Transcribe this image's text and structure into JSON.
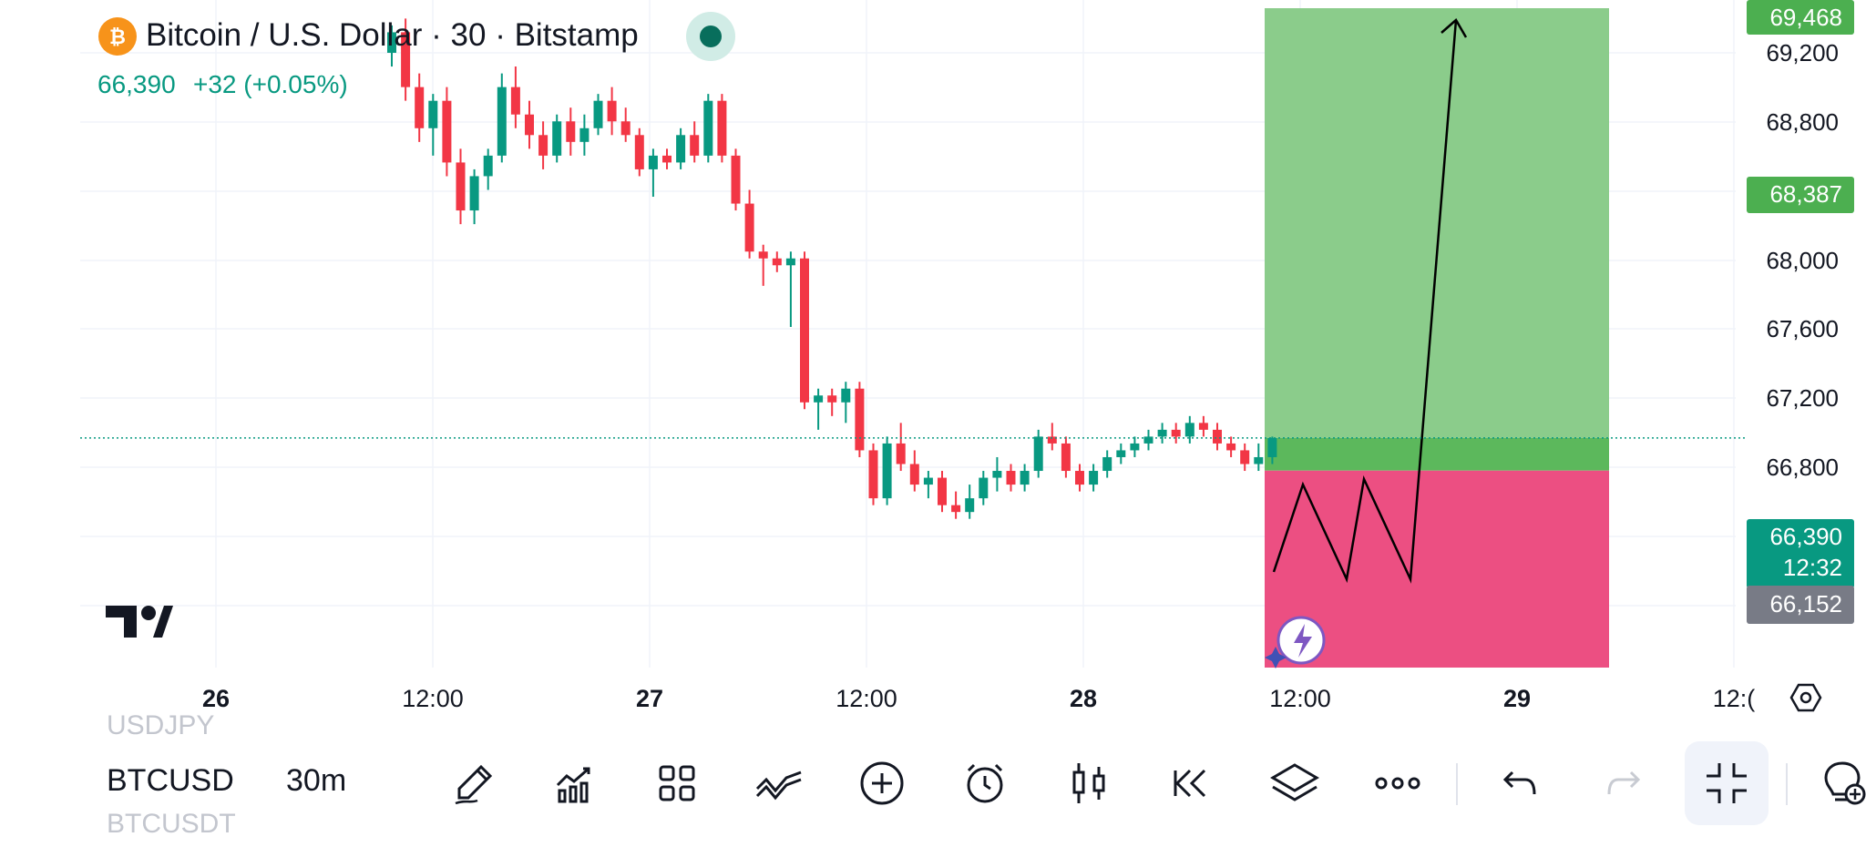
{
  "header": {
    "symbol_icon": "bitcoin-logo-icon",
    "symbol_glyph": "₿",
    "title": "Bitcoin / U.S. Dollar · 30 · Bitstamp",
    "status_icon": "market-status-dot-icon",
    "price": "66,390",
    "change": "+32 (+0.05%)"
  },
  "price_axis": {
    "ticks": [
      "69,200",
      "68,800",
      "68,000",
      "67,600",
      "67,200",
      "66,800"
    ],
    "badges": {
      "target_top": "69,468",
      "target_mid": "68,387",
      "current_price": "66,390",
      "countdown": "12:32",
      "stop": "66,152"
    }
  },
  "time_axis": {
    "labels": [
      {
        "text": "26",
        "bold": true
      },
      {
        "text": "12:00",
        "bold": false
      },
      {
        "text": "27",
        "bold": true
      },
      {
        "text": "12:00",
        "bold": false
      },
      {
        "text": "28",
        "bold": true
      },
      {
        "text": "12:00",
        "bold": false
      },
      {
        "text": "29",
        "bold": true
      },
      {
        "text": "12:(",
        "bold": false
      }
    ],
    "settings_icon": "axis-settings-hexagon-icon"
  },
  "colors": {
    "up": "#089981",
    "down": "#f23645",
    "profit_zone": "#8bcc8b",
    "profit_zone_overlap": "#5cb85c",
    "loss_zone": "#ec4f82",
    "current_price": "#089981",
    "badge_green": "#4caf50",
    "badge_gray": "#787b86"
  },
  "chart_data": {
    "type": "candlestick",
    "title": "Bitcoin / U.S. Dollar · 30 · Bitstamp",
    "series": [
      {
        "ohlc": [
          [
            69200,
            69400,
            69100,
            69350
          ],
          [
            69350,
            69450,
            68850,
            68950
          ],
          [
            68950,
            69050,
            68550,
            68650
          ],
          [
            68650,
            68900,
            68450,
            68850
          ],
          [
            68850,
            68950,
            68300,
            68400
          ],
          [
            68400,
            68500,
            67950,
            68050
          ],
          [
            68050,
            68350,
            67950,
            68300
          ],
          [
            68300,
            68500,
            68200,
            68450
          ],
          [
            68450,
            69050,
            68400,
            68950
          ],
          [
            68950,
            69100,
            68650,
            68750
          ],
          [
            68750,
            68850,
            68500,
            68600
          ],
          [
            68600,
            68700,
            68350,
            68450
          ],
          [
            68450,
            68750,
            68400,
            68700
          ],
          [
            68700,
            68800,
            68450,
            68550
          ],
          [
            68550,
            68750,
            68450,
            68650
          ],
          [
            68650,
            68900,
            68600,
            68850
          ],
          [
            68850,
            68950,
            68600,
            68700
          ],
          [
            68700,
            68800,
            68550,
            68600
          ],
          [
            68600,
            68650,
            68300,
            68350
          ],
          [
            68350,
            68500,
            68150,
            68450
          ],
          [
            68450,
            68500,
            68350,
            68400
          ],
          [
            68400,
            68650,
            68350,
            68600
          ],
          [
            68600,
            68700,
            68400,
            68450
          ],
          [
            68450,
            68900,
            68400,
            68850
          ],
          [
            68850,
            68900,
            68400,
            68450
          ],
          [
            68450,
            68500,
            68050,
            68100
          ],
          [
            68100,
            68200,
            67700,
            67750
          ],
          [
            67750,
            67800,
            67500,
            67700
          ],
          [
            67700,
            67750,
            67600,
            67650
          ],
          [
            67650,
            67750,
            67200,
            67700
          ],
          [
            67700,
            67750,
            66600,
            66650
          ],
          [
            66650,
            66750,
            66450,
            66700
          ],
          [
            66700,
            66750,
            66550,
            66650
          ],
          [
            66650,
            66800,
            66500,
            66750
          ],
          [
            66750,
            66800,
            66250,
            66300
          ],
          [
            66300,
            66350,
            65900,
            65950
          ],
          [
            65950,
            66400,
            65900,
            66350
          ],
          [
            66350,
            66500,
            66150,
            66200
          ],
          [
            66200,
            66300,
            66000,
            66050
          ],
          [
            66050,
            66150,
            65950,
            66100
          ],
          [
            66100,
            66150,
            65850,
            65900
          ],
          [
            65900,
            66000,
            65800,
            65850
          ],
          [
            65850,
            66050,
            65800,
            65950
          ],
          [
            65950,
            66150,
            65900,
            66100
          ],
          [
            66100,
            66250,
            66000,
            66150
          ],
          [
            66150,
            66200,
            66000,
            66050
          ],
          [
            66050,
            66200,
            66000,
            66150
          ],
          [
            66150,
            66450,
            66100,
            66400
          ],
          [
            66400,
            66500,
            66300,
            66350
          ],
          [
            66350,
            66400,
            66100,
            66150
          ],
          [
            66150,
            66200,
            66000,
            66050
          ],
          [
            66050,
            66200,
            66000,
            66150
          ],
          [
            66150,
            66300,
            66100,
            66250
          ],
          [
            66250,
            66350,
            66200,
            66300
          ],
          [
            66300,
            66400,
            66250,
            66350
          ],
          [
            66350,
            66450,
            66300,
            66400
          ],
          [
            66400,
            66500,
            66350,
            66450
          ],
          [
            66450,
            66500,
            66350,
            66400
          ],
          [
            66400,
            66550,
            66350,
            66500
          ],
          [
            66500,
            66550,
            66400,
            66450
          ],
          [
            66450,
            66500,
            66300,
            66350
          ],
          [
            66350,
            66400,
            66250,
            66300
          ],
          [
            66300,
            66350,
            66150,
            66200
          ],
          [
            66200,
            66350,
            66150,
            66250
          ],
          [
            66250,
            66400,
            66200,
            66390
          ]
        ]
      }
    ],
    "ylim": [
      65800,
      69600
    ],
    "current_price": 66390,
    "long_position": {
      "entry": 66390,
      "target": 69468,
      "stop": 66152
    }
  },
  "toolbar": {
    "prev_symbol": "USDJPY",
    "symbol": "BTCUSD",
    "interval": "30m",
    "next_symbol": "BTCUSDT",
    "buttons": [
      {
        "name": "drawing-tools-button",
        "icon": "pencil-icon"
      },
      {
        "name": "indicators-button",
        "icon": "indicators-chart-icon"
      },
      {
        "name": "layouts-button",
        "icon": "grid-icon"
      },
      {
        "name": "trend-tools-button",
        "icon": "wave-lines-icon"
      },
      {
        "name": "add-button",
        "icon": "plus-circle-icon"
      },
      {
        "name": "alert-button",
        "icon": "alarm-clock-icon"
      },
      {
        "name": "chart-type-button",
        "icon": "candles-icon"
      },
      {
        "name": "replay-button",
        "icon": "rewind-icon"
      },
      {
        "name": "object-tree-button",
        "icon": "layers-icon"
      },
      {
        "name": "more-button",
        "icon": "more-dots-icon"
      },
      {
        "name": "undo-button",
        "icon": "undo-icon"
      },
      {
        "name": "redo-button",
        "icon": "redo-icon"
      },
      {
        "name": "exit-fullscreen-button",
        "icon": "collapse-icon"
      },
      {
        "name": "ideas-button",
        "icon": "lightbulb-icon"
      }
    ]
  }
}
